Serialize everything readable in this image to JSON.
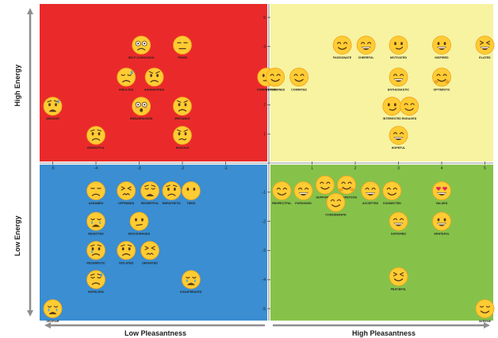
{
  "chart_data": {
    "type": "scatter",
    "title": "",
    "xlabel_left": "Low Pleasantness",
    "xlabel_right": "High Pleasantness",
    "ylabel_top": "High Energy",
    "ylabel_bottom": "Low Energy",
    "xlim": [
      -5,
      5
    ],
    "ylim": [
      -5,
      5
    ],
    "x_ticks": [
      "-5",
      "-4",
      "-3",
      "-2",
      "-1",
      "1",
      "2",
      "3",
      "4",
      "5"
    ],
    "y_ticks": [
      "5",
      "4",
      "3",
      "2",
      "1",
      "-1",
      "-2",
      "-3",
      "-4",
      "-5"
    ],
    "grid": false,
    "quadrant_colors": {
      "high_energy_low_pleasantness": "#ea2a2a",
      "high_energy_high_pleasantness": "#f7f3a0",
      "low_energy_low_pleasantness": "#3a8ed1",
      "low_energy_high_pleasantness": "#86c24a"
    },
    "emoji_colors": {
      "face": "#ffcc33",
      "face_dark": "#f0a21d",
      "feature": "#5b3a1b",
      "tear": "#4aa3df",
      "heart": "#e0245e"
    },
    "points": [
      {
        "label": "SELF-CONSCIOUS",
        "x": -2.95,
        "y": 4.05,
        "icon": "anxious-face"
      },
      {
        "label": "TENSE",
        "x": -2.0,
        "y": 4.05,
        "icon": "expressionless-face"
      },
      {
        "label": "INSULTED",
        "x": -3.3,
        "y": 2.95,
        "icon": "sweat-face"
      },
      {
        "label": "AGGRAVATED",
        "x": -2.65,
        "y": 2.95,
        "icon": "frown-face"
      },
      {
        "label": "COMPETITIVE",
        "x": -0.05,
        "y": 2.95,
        "icon": "flat-face"
      },
      {
        "label": "ANXIOUS",
        "x": -5.0,
        "y": 1.95,
        "icon": "anxious-sweat-face"
      },
      {
        "label": "EMBARRASSED",
        "x": -2.95,
        "y": 1.95,
        "icon": "flushed-face"
      },
      {
        "label": "IRRITABLE",
        "x": -2.0,
        "y": 1.95,
        "icon": "frown-face"
      },
      {
        "label": "RESENTFUL",
        "x": -4.0,
        "y": 0.95,
        "icon": "worried-face"
      },
      {
        "label": "ENVIOUS",
        "x": -2.0,
        "y": 0.95,
        "icon": "confused-face"
      },
      {
        "label": "PASSIONATE",
        "x": 1.7,
        "y": 4.05,
        "icon": "smile-face"
      },
      {
        "label": "CHEERFUL",
        "x": 2.25,
        "y": 4.05,
        "icon": "grin-face"
      },
      {
        "label": "MOTIVATED",
        "x": 3.0,
        "y": 4.05,
        "icon": "smirk-face"
      },
      {
        "label": "INSPIRED",
        "x": 4.0,
        "y": 4.05,
        "icon": "happy-face"
      },
      {
        "label": "ELATED",
        "x": 5.0,
        "y": 4.05,
        "icon": "laugh-face"
      },
      {
        "label": "DETERMINED",
        "x": 0.15,
        "y": 2.95,
        "icon": "smile-face"
      },
      {
        "label": "COMMITED",
        "x": 0.7,
        "y": 2.95,
        "icon": "smile-face"
      },
      {
        "label": "ENTHUSIASTIC",
        "x": 3.0,
        "y": 2.95,
        "icon": "grin-face"
      },
      {
        "label": "OPTIMISTIC",
        "x": 4.0,
        "y": 2.95,
        "icon": "hug-face"
      },
      {
        "label": "INTERESTED",
        "x": 2.85,
        "y": 1.95,
        "icon": "smirk-face"
      },
      {
        "label": "ENGAGED",
        "x": 3.25,
        "y": 1.95,
        "icon": "smile-face"
      },
      {
        "label": "HOPEFUL",
        "x": 3.0,
        "y": 0.95,
        "icon": "grin-face"
      },
      {
        "label": "ASHAMED",
        "x": -4.0,
        "y": -0.95,
        "icon": "ashamed-face"
      },
      {
        "label": "OFFENDED",
        "x": -3.3,
        "y": -0.95,
        "icon": "confounded-face"
      },
      {
        "label": "REGRETFUL",
        "x": -2.75,
        "y": -0.95,
        "icon": "weary-face"
      },
      {
        "label": "EMPATHETIC",
        "x": -2.25,
        "y": -0.95,
        "icon": "worried-face"
      },
      {
        "label": "TIRED",
        "x": -1.8,
        "y": -0.95,
        "icon": "neutral-face"
      },
      {
        "label": "REJECTED",
        "x": -4.0,
        "y": -2.0,
        "icon": "cry-face"
      },
      {
        "label": "DISCOURAGED",
        "x": -3.0,
        "y": -2.0,
        "icon": "disappointed-face"
      },
      {
        "label": "PESSIMISTIC",
        "x": -4.0,
        "y": -3.0,
        "icon": "pessimistic-face"
      },
      {
        "label": "ISOLATED",
        "x": -3.3,
        "y": -3.0,
        "icon": "sad-face"
      },
      {
        "label": "DEFEATED",
        "x": -2.75,
        "y": -3.0,
        "icon": "confounded-face"
      },
      {
        "label": "HOPELESS",
        "x": -4.0,
        "y": -4.0,
        "icon": "downcast-face"
      },
      {
        "label": "EXASPERATED",
        "x": -1.8,
        "y": -4.0,
        "icon": "cry-face"
      },
      {
        "label": "DESPAIR",
        "x": -5.0,
        "y": -5.0,
        "icon": "cry-face"
      },
      {
        "label": "RESPECTFUL",
        "x": 0.3,
        "y": -0.95,
        "icon": "smile-face"
      },
      {
        "label": "FORGIVING",
        "x": 0.8,
        "y": -0.95,
        "icon": "grin-face"
      },
      {
        "label": "SUPPORTED",
        "x": 1.3,
        "y": -0.75,
        "icon": "smile-face"
      },
      {
        "label": "UNDERSTOOD",
        "x": 1.8,
        "y": -0.75,
        "icon": "hug-face"
      },
      {
        "label": "CONSIDERATE",
        "x": 1.55,
        "y": -1.35,
        "icon": "smile-face"
      },
      {
        "label": "ACCEPTED",
        "x": 2.35,
        "y": -0.95,
        "icon": "grin-face"
      },
      {
        "label": "CONNECTED",
        "x": 2.85,
        "y": -0.95,
        "icon": "smile-face"
      },
      {
        "label": "VALUED",
        "x": 4.0,
        "y": -0.95,
        "icon": "heart-eyes-face"
      },
      {
        "label": "SATISFIED",
        "x": 3.0,
        "y": -2.0,
        "icon": "grin-face"
      },
      {
        "label": "GRATEFUL",
        "x": 4.0,
        "y": -2.0,
        "icon": "happy-face"
      },
      {
        "label": "PEACEFUL",
        "x": 3.0,
        "y": -3.9,
        "icon": "squint-face"
      },
      {
        "label": "SERENE",
        "x": 5.0,
        "y": -5.0,
        "icon": "relieved-face"
      }
    ]
  }
}
